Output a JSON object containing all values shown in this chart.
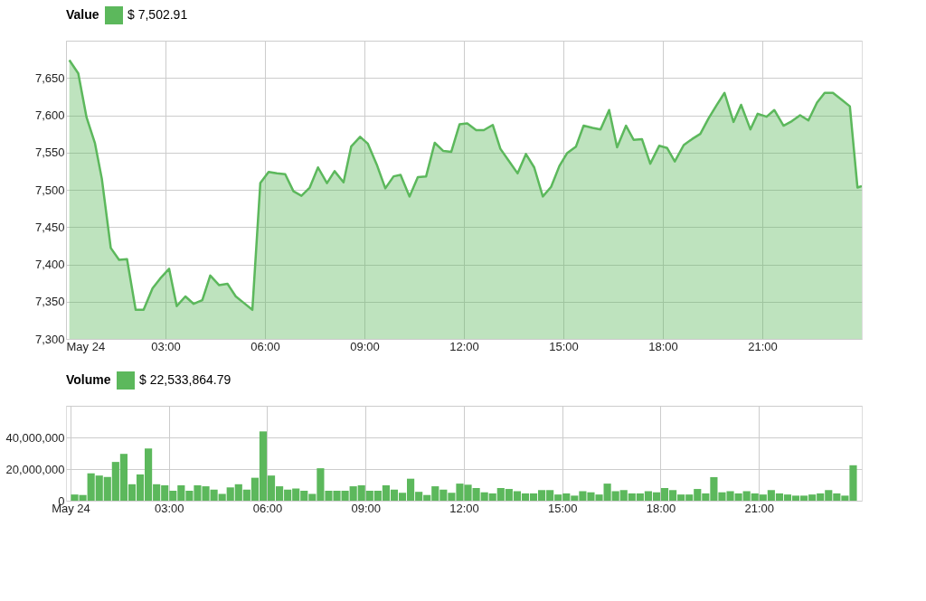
{
  "chart_data": [
    {
      "type": "area",
      "legend_title": "Value",
      "legend": "top left",
      "grid": true,
      "x": [
        0.1,
        0.37,
        0.62,
        0.87,
        1.08,
        1.35,
        1.6,
        1.84,
        2.1,
        2.34,
        2.61,
        2.84,
        3.11,
        3.34,
        3.6,
        3.85,
        4.11,
        4.35,
        4.62,
        4.87,
        5.12,
        5.37,
        5.62,
        5.86,
        6.11,
        6.36,
        6.61,
        6.86,
        7.1,
        7.35,
        7.6,
        7.87,
        8.1,
        8.37,
        8.6,
        8.87,
        9.1,
        9.37,
        9.63,
        9.88,
        10.09,
        10.36,
        10.61,
        10.86,
        11.12,
        11.38,
        11.62,
        11.87,
        12.1,
        12.37,
        12.6,
        12.87,
        13.1,
        13.35,
        13.62,
        13.87,
        14.12,
        14.38,
        14.63,
        14.88,
        15.11,
        15.38,
        15.61,
        15.88,
        16.12,
        16.38,
        16.62,
        16.89,
        17.12,
        17.37,
        17.62,
        17.89,
        18.13,
        18.36,
        18.63,
        18.88,
        19.13,
        19.38,
        19.63,
        19.86,
        20.13,
        20.36,
        20.64,
        20.86,
        21.13,
        21.36,
        21.64,
        21.89,
        22.14,
        22.39,
        22.65,
        22.88,
        23.13,
        23.39,
        23.64,
        23.87,
        24.0
      ],
      "series": [
        {
          "name": "$ 7,502.91",
          "color": "#5cb85c",
          "values": [
            7674,
            7656,
            7597,
            7563,
            7515,
            7422,
            7406,
            7407,
            7339,
            7339,
            7368,
            7381,
            7394,
            7344,
            7357,
            7347,
            7352,
            7385,
            7372,
            7374,
            7357,
            7348,
            7339,
            7509,
            7524,
            7522,
            7521,
            7498,
            7492,
            7503,
            7530,
            7509,
            7525,
            7510,
            7558,
            7571,
            7562,
            7534,
            7502,
            7518,
            7520,
            7491,
            7517,
            7518,
            7563,
            7552,
            7551,
            7588,
            7589,
            7580,
            7580,
            7587,
            7555,
            7539,
            7522,
            7548,
            7530,
            7491,
            7504,
            7532,
            7549,
            7558,
            7586,
            7583,
            7581,
            7607,
            7557,
            7586,
            7567,
            7568,
            7535,
            7559,
            7556,
            7538,
            7560,
            7568,
            7575,
            7596,
            7614,
            7630,
            7591,
            7614,
            7581,
            7602,
            7598,
            7607,
            7586,
            7592,
            7600,
            7593,
            7617,
            7630,
            7630,
            7621,
            7612,
            7503,
            7505
          ]
        }
      ],
      "xlim": [
        0,
        24
      ],
      "xticks": [
        {
          "value": 0,
          "label": "May 24"
        },
        {
          "value": 3,
          "label": "03:00"
        },
        {
          "value": 6,
          "label": "06:00"
        },
        {
          "value": 9,
          "label": "09:00"
        },
        {
          "value": 12,
          "label": "12:00"
        },
        {
          "value": 15,
          "label": "15:00"
        },
        {
          "value": 18,
          "label": "18:00"
        },
        {
          "value": 21,
          "label": "21:00"
        }
      ],
      "ylim": [
        7300,
        7700
      ],
      "yticks": [
        {
          "value": 7300,
          "label": "7,300"
        },
        {
          "value": 7350,
          "label": "7,350"
        },
        {
          "value": 7400,
          "label": "7,400"
        },
        {
          "value": 7450,
          "label": "7,450"
        },
        {
          "value": 7500,
          "label": "7,500"
        },
        {
          "value": 7550,
          "label": "7,550"
        },
        {
          "value": 7600,
          "label": "7,600"
        },
        {
          "value": 7650,
          "label": "7,650"
        },
        {
          "value": 7700,
          "label": null
        }
      ]
    },
    {
      "type": "bar",
      "legend_title": "Volume",
      "legend": "top left",
      "grid": true,
      "x": [
        0.125,
        0.375,
        0.625,
        0.875,
        1.125,
        1.375,
        1.625,
        1.875,
        2.125,
        2.375,
        2.625,
        2.875,
        3.125,
        3.375,
        3.625,
        3.875,
        4.125,
        4.375,
        4.625,
        4.875,
        5.125,
        5.375,
        5.625,
        5.875,
        6.125,
        6.375,
        6.625,
        6.875,
        7.125,
        7.375,
        7.625,
        7.875,
        8.125,
        8.375,
        8.625,
        8.875,
        9.125,
        9.375,
        9.625,
        9.875,
        10.125,
        10.375,
        10.625,
        10.875,
        11.125,
        11.375,
        11.625,
        11.875,
        12.125,
        12.375,
        12.625,
        12.875,
        13.125,
        13.375,
        13.625,
        13.875,
        14.125,
        14.375,
        14.625,
        14.875,
        15.125,
        15.375,
        15.625,
        15.875,
        16.125,
        16.375,
        16.625,
        16.875,
        17.125,
        17.375,
        17.625,
        17.875,
        18.125,
        18.375,
        18.625,
        18.875,
        19.125,
        19.375,
        19.625,
        19.875,
        20.125,
        20.375,
        20.625,
        20.875,
        21.125,
        21.375,
        21.625,
        21.875,
        22.125,
        22.375,
        22.625,
        22.875,
        23.125,
        23.375,
        23.625,
        23.875
      ],
      "series": [
        {
          "name": "$ 22,533,864.79",
          "color": "#5cb85c",
          "values": [
            3900000,
            3600000,
            17300000,
            15900000,
            15000000,
            24500000,
            29600000,
            10400000,
            16600000,
            33000000,
            10400000,
            9700000,
            6300000,
            9700000,
            6300000,
            9700000,
            9100000,
            7000000,
            4300000,
            8400000,
            10400000,
            7000000,
            14500000,
            43800000,
            15900000,
            9100000,
            7000000,
            7700000,
            6300000,
            4300000,
            20500000,
            6300000,
            6300000,
            6300000,
            9100000,
            9700000,
            6300000,
            6300000,
            9700000,
            7000000,
            5000000,
            13900000,
            5600000,
            3600000,
            9100000,
            7000000,
            5000000,
            10800000,
            10100000,
            8000000,
            5300000,
            4600000,
            8000000,
            7400000,
            6000000,
            4600000,
            4600000,
            6700000,
            6700000,
            3900000,
            4600000,
            3200000,
            6000000,
            5300000,
            3900000,
            10800000,
            6000000,
            6700000,
            4600000,
            4600000,
            6000000,
            5300000,
            8000000,
            6700000,
            3900000,
            3900000,
            7400000,
            4600000,
            14900000,
            5300000,
            6000000,
            4600000,
            6000000,
            4600000,
            3900000,
            6700000,
            4600000,
            3900000,
            3200000,
            3200000,
            3900000,
            4600000,
            6700000,
            4600000,
            3200000,
            22400000
          ]
        }
      ],
      "xlim": [
        0,
        24
      ],
      "xticks": [
        {
          "value": 0,
          "label": "May 24"
        },
        {
          "value": 3,
          "label": "03:00"
        },
        {
          "value": 6,
          "label": "06:00"
        },
        {
          "value": 9,
          "label": "09:00"
        },
        {
          "value": 12,
          "label": "12:00"
        },
        {
          "value": 15,
          "label": "15:00"
        },
        {
          "value": 18,
          "label": "18:00"
        },
        {
          "value": 21,
          "label": "21:00"
        }
      ],
      "ylim": [
        0,
        60000000
      ],
      "yticks": [
        0,
        {
          "value": 20000000,
          "label": "20,000,000"
        },
        {
          "value": 40000000,
          "label": "40,000,000"
        },
        {
          "value": 60000000,
          "label": null
        }
      ]
    }
  ]
}
